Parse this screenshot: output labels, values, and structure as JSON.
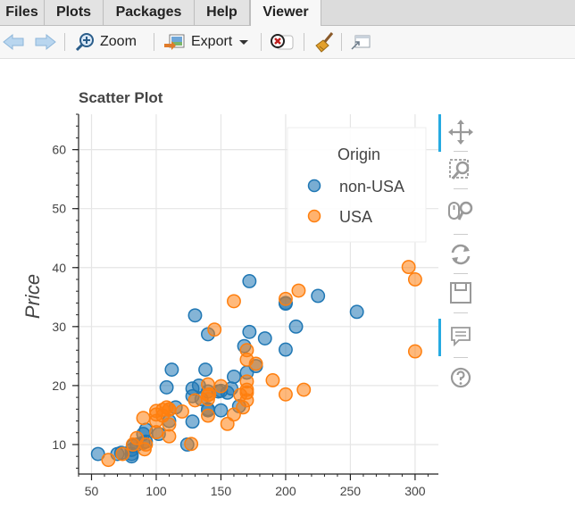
{
  "tabs": [
    {
      "label": "Files",
      "active": false
    },
    {
      "label": "Plots",
      "active": false
    },
    {
      "label": "Packages",
      "active": false
    },
    {
      "label": "Help",
      "active": false
    },
    {
      "label": "Viewer",
      "active": true
    }
  ],
  "toolbar": {
    "back_icon": "arrow-left-icon",
    "forward_icon": "arrow-right-icon",
    "zoom_label": "Zoom",
    "export_label": "Export",
    "clear_icon": "clear-icon",
    "broom_icon": "broom-icon",
    "popout_icon": "popout-icon"
  },
  "side_tools": [
    "pan-icon",
    "box-zoom-icon",
    "wheel-zoom-icon",
    "reset-icon",
    "save-icon",
    "hover-icon",
    "help-icon"
  ],
  "chart_data": {
    "type": "scatter",
    "title": "Scatter Plot",
    "xlabel": "",
    "ylabel": "Price",
    "xlim": [
      40,
      318
    ],
    "ylim": [
      5,
      66
    ],
    "x_ticks": [
      50,
      100,
      150,
      200,
      250,
      300
    ],
    "y_ticks": [
      10,
      20,
      30,
      40,
      50,
      60
    ],
    "grid": true,
    "legend": {
      "title": "Origin",
      "position": "top-right"
    },
    "series": [
      {
        "name": "non-USA",
        "color": "#1f77b4",
        "points": [
          [
            55,
            8.4
          ],
          [
            70,
            8.4
          ],
          [
            73,
            8.6
          ],
          [
            81,
            8.0
          ],
          [
            81,
            8.4
          ],
          [
            81,
            9.1
          ],
          [
            82,
            9.8
          ],
          [
            85,
            10.0
          ],
          [
            90,
            10.3
          ],
          [
            90,
            11.8
          ],
          [
            92,
            10.5
          ],
          [
            92,
            12.5
          ],
          [
            102,
            11.8
          ],
          [
            110,
            14.0
          ],
          [
            112,
            22.7
          ],
          [
            115,
            16.3
          ],
          [
            124,
            10.0
          ],
          [
            128,
            13.9
          ],
          [
            128,
            18.2
          ],
          [
            128,
            19.5
          ],
          [
            130,
            31.9
          ],
          [
            133,
            20.0
          ],
          [
            135,
            17.7
          ],
          [
            138,
            22.7
          ],
          [
            140,
            28.7
          ],
          [
            140,
            16.0
          ],
          [
            140,
            15.8
          ],
          [
            140,
            19.0
          ],
          [
            148,
            19.0
          ],
          [
            150,
            15.8
          ],
          [
            150,
            19.1
          ],
          [
            155,
            18.8
          ],
          [
            158,
            19.5
          ],
          [
            160,
            21.5
          ],
          [
            164,
            16.5
          ],
          [
            168,
            26.7
          ],
          [
            170,
            22.2
          ],
          [
            172,
            29.1
          ],
          [
            172,
            37.7
          ],
          [
            177,
            23.3
          ],
          [
            184,
            28.0
          ],
          [
            200,
            26.1
          ],
          [
            200,
            34.0
          ],
          [
            200,
            33.9
          ],
          [
            208,
            30.0
          ],
          [
            225,
            35.2
          ],
          [
            255,
            32.5
          ],
          [
            108,
            19.7
          ]
        ]
      },
      {
        "name": "USA",
        "color": "#ff7f0e",
        "points": [
          [
            63,
            7.4
          ],
          [
            74,
            8.4
          ],
          [
            82,
            10.0
          ],
          [
            85,
            11.1
          ],
          [
            90,
            14.5
          ],
          [
            91,
            9.2
          ],
          [
            92,
            10.0
          ],
          [
            100,
            14.0
          ],
          [
            100,
            15.7
          ],
          [
            100,
            12.1
          ],
          [
            105,
            15.9
          ],
          [
            105,
            14.9
          ],
          [
            108,
            16.3
          ],
          [
            110,
            16.0
          ],
          [
            110,
            13.4
          ],
          [
            110,
            11.4
          ],
          [
            110,
            15.9
          ],
          [
            127,
            10.1
          ],
          [
            130,
            17.5
          ],
          [
            140,
            14.9
          ],
          [
            140,
            17.7
          ],
          [
            140,
            18.4
          ],
          [
            140,
            20.2
          ],
          [
            141,
            18.5
          ],
          [
            145,
            29.5
          ],
          [
            150,
            19.9
          ],
          [
            155,
            13.5
          ],
          [
            160,
            34.3
          ],
          [
            160,
            15.1
          ],
          [
            165,
            18.4
          ],
          [
            167,
            16.3
          ],
          [
            170,
            18.8
          ],
          [
            170,
            19.3
          ],
          [
            170,
            20.7
          ],
          [
            170,
            24.4
          ],
          [
            170,
            26.0
          ],
          [
            170,
            17.5
          ],
          [
            177,
            23.7
          ],
          [
            190,
            20.9
          ],
          [
            200,
            18.5
          ],
          [
            200,
            34.7
          ],
          [
            210,
            36.1
          ],
          [
            214,
            19.3
          ],
          [
            295,
            40.1
          ],
          [
            300,
            25.8
          ],
          [
            300,
            38.0
          ],
          [
            100,
            15.1
          ],
          [
            120,
            15.6
          ]
        ]
      }
    ]
  }
}
